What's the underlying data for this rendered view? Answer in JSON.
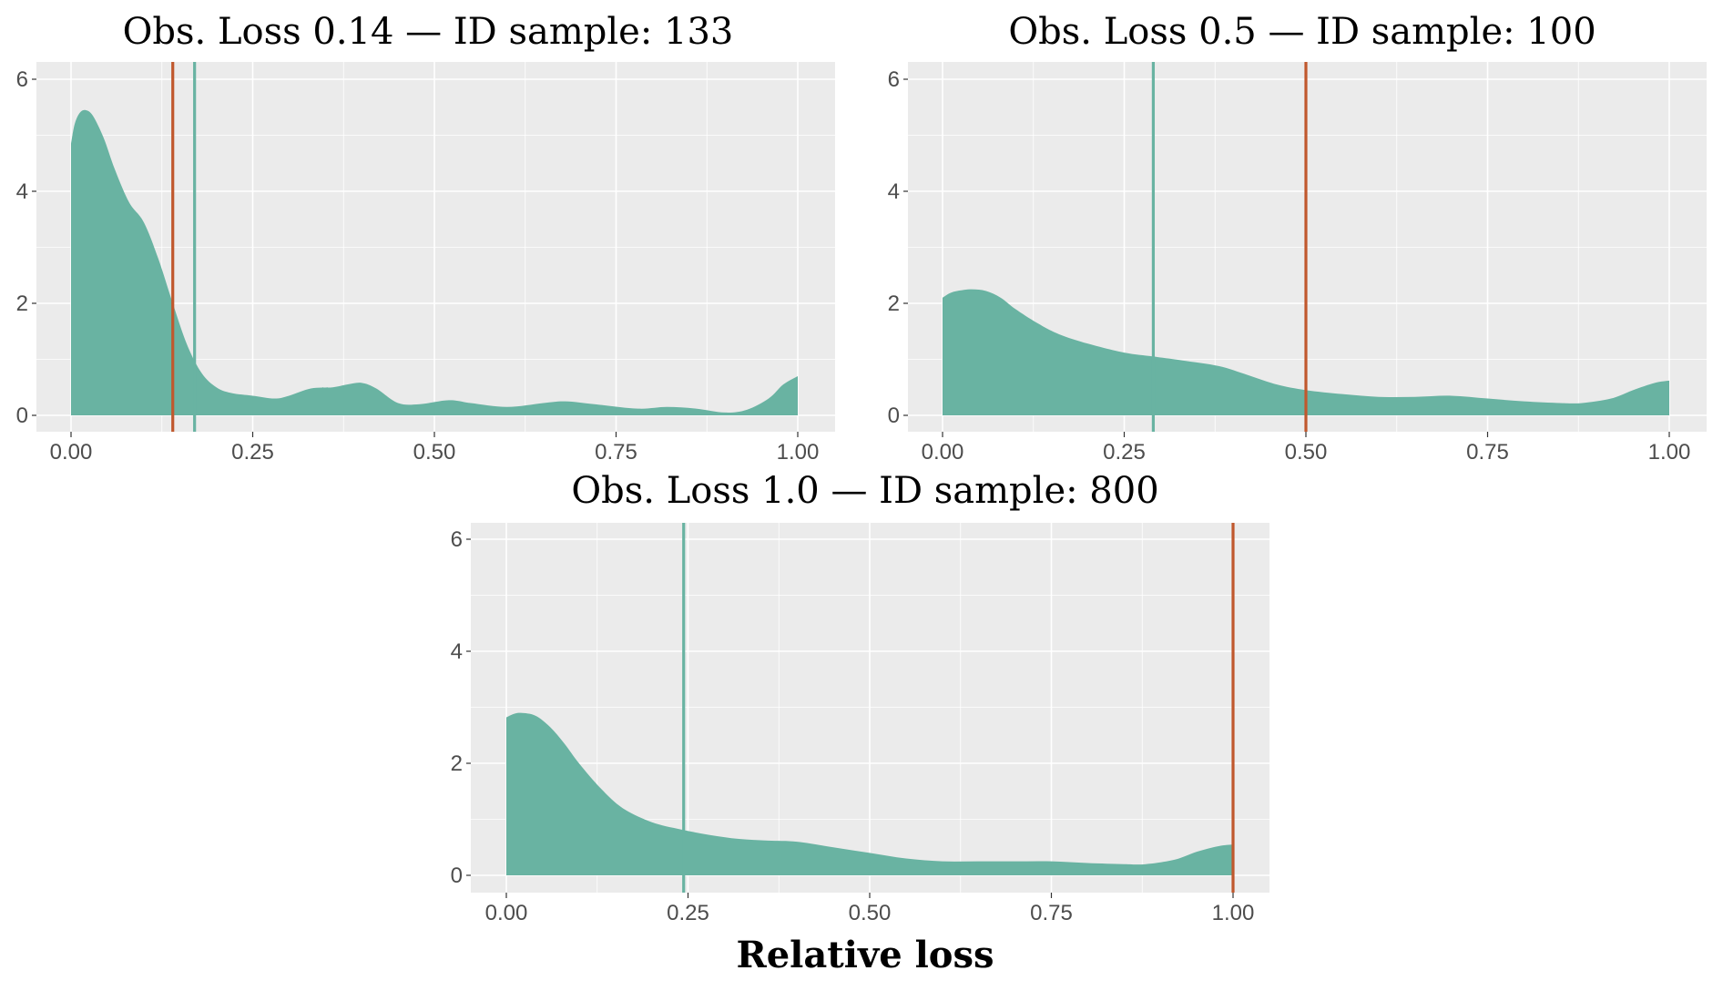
{
  "colors": {
    "density_fill": "#69b3a2",
    "obs_line": "#c0582d",
    "mean_line": "#69b3a2",
    "panel_bg": "#ebebeb",
    "grid": "#ffffff"
  },
  "figure": {
    "xlabel": "Relative loss"
  },
  "chart_data": [
    {
      "type": "area",
      "title": "Obs. Loss 0.14 — ID sample: 133",
      "xlim": [
        0,
        1
      ],
      "ylim": [
        0,
        6
      ],
      "x_ticks": [
        "0.00",
        "0.25",
        "0.50",
        "0.75",
        "1.00"
      ],
      "y_ticks": [
        "0",
        "2",
        "4",
        "6"
      ],
      "obs_line": 0.14,
      "mean_line": 0.17,
      "density": {
        "x": [
          0,
          0.005,
          0.012,
          0.02,
          0.03,
          0.045,
          0.06,
          0.08,
          0.1,
          0.12,
          0.14,
          0.16,
          0.18,
          0.2,
          0.22,
          0.25,
          0.28,
          0.3,
          0.33,
          0.36,
          0.38,
          0.4,
          0.42,
          0.45,
          0.48,
          0.52,
          0.55,
          0.6,
          0.65,
          0.68,
          0.72,
          0.78,
          0.82,
          0.86,
          0.9,
          0.93,
          0.96,
          0.98,
          1.0
        ],
        "y": [
          4.85,
          5.2,
          5.4,
          5.45,
          5.35,
          4.95,
          4.4,
          3.8,
          3.45,
          2.8,
          2.0,
          1.25,
          0.75,
          0.5,
          0.4,
          0.35,
          0.3,
          0.35,
          0.48,
          0.5,
          0.55,
          0.58,
          0.48,
          0.22,
          0.2,
          0.27,
          0.22,
          0.15,
          0.22,
          0.25,
          0.2,
          0.12,
          0.15,
          0.12,
          0.05,
          0.1,
          0.3,
          0.55,
          0.7
        ]
      }
    },
    {
      "type": "area",
      "title": "Obs. Loss 0.5 — ID sample: 100",
      "xlim": [
        0,
        1
      ],
      "ylim": [
        0,
        6
      ],
      "x_ticks": [
        "0.00",
        "0.25",
        "0.50",
        "0.75",
        "1.00"
      ],
      "y_ticks": [
        "0",
        "2",
        "4",
        "6"
      ],
      "obs_line": 0.5,
      "mean_line": 0.29,
      "density": {
        "x": [
          0,
          0.01,
          0.02,
          0.04,
          0.06,
          0.08,
          0.1,
          0.13,
          0.16,
          0.2,
          0.25,
          0.29,
          0.33,
          0.38,
          0.42,
          0.46,
          0.5,
          0.55,
          0.6,
          0.65,
          0.7,
          0.75,
          0.8,
          0.85,
          0.88,
          0.92,
          0.95,
          0.98,
          1.0
        ],
        "y": [
          2.1,
          2.18,
          2.22,
          2.25,
          2.22,
          2.1,
          1.9,
          1.65,
          1.45,
          1.28,
          1.12,
          1.05,
          0.98,
          0.88,
          0.72,
          0.55,
          0.45,
          0.38,
          0.33,
          0.33,
          0.35,
          0.3,
          0.25,
          0.22,
          0.22,
          0.3,
          0.45,
          0.58,
          0.62
        ]
      }
    },
    {
      "type": "area",
      "title": "Obs. Loss 1.0 — ID sample: 800",
      "xlim": [
        0,
        1
      ],
      "ylim": [
        0,
        6
      ],
      "x_ticks": [
        "0.00",
        "0.25",
        "0.50",
        "0.75",
        "1.00"
      ],
      "y_ticks": [
        "0",
        "2",
        "4",
        "6"
      ],
      "obs_line": 1.0,
      "mean_line": 0.244,
      "density": {
        "x": [
          0,
          0.01,
          0.02,
          0.04,
          0.06,
          0.08,
          0.1,
          0.13,
          0.16,
          0.2,
          0.24,
          0.28,
          0.32,
          0.36,
          0.4,
          0.45,
          0.5,
          0.55,
          0.6,
          0.65,
          0.7,
          0.75,
          0.8,
          0.85,
          0.88,
          0.92,
          0.95,
          0.98,
          1.0
        ],
        "y": [
          2.82,
          2.88,
          2.9,
          2.85,
          2.65,
          2.35,
          2.0,
          1.55,
          1.2,
          0.95,
          0.82,
          0.72,
          0.65,
          0.62,
          0.6,
          0.5,
          0.4,
          0.3,
          0.25,
          0.25,
          0.25,
          0.25,
          0.22,
          0.2,
          0.2,
          0.28,
          0.42,
          0.52,
          0.55
        ]
      }
    }
  ]
}
